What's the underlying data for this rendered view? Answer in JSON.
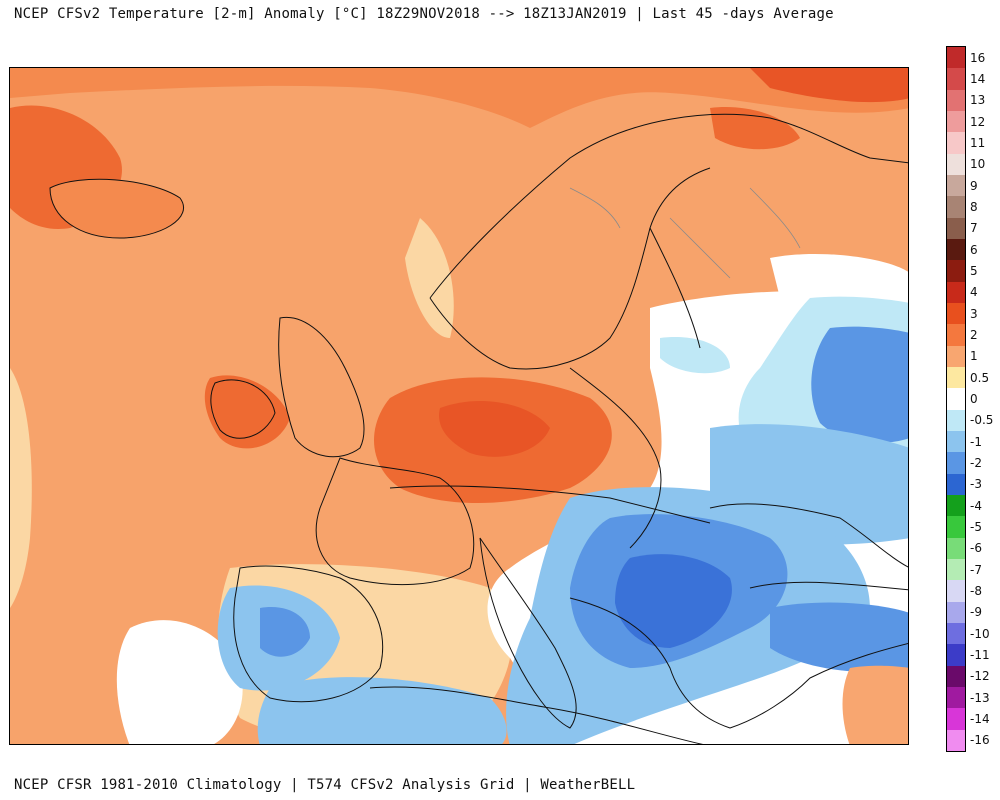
{
  "header": {
    "title": "NCEP CFSv2 Temperature [2-m] Anomaly  [°C] 18Z29NOV2018 --> 18Z13JAN2019 | Last 45 -days Average"
  },
  "footer": {
    "credit": "NCEP CFSR 1981-2010 Climatology | T574 CFSv2 Analysis Grid | WeatherBELL"
  },
  "colorbar": {
    "entries": [
      {
        "label": "16",
        "color": "#c02a2a"
      },
      {
        "label": "14",
        "color": "#d44a4a"
      },
      {
        "label": "13",
        "color": "#e27272"
      },
      {
        "label": "12",
        "color": "#ee9c9c"
      },
      {
        "label": "11",
        "color": "#f7c8c8"
      },
      {
        "label": "10",
        "color": "#eee0dc"
      },
      {
        "label": "9",
        "color": "#c8a89c"
      },
      {
        "label": "8",
        "color": "#a88474"
      },
      {
        "label": "7",
        "color": "#8a5e4c"
      },
      {
        "label": "6",
        "color": "#5a1a10"
      },
      {
        "label": "5",
        "color": "#8c1c10"
      },
      {
        "label": "4",
        "color": "#c82a1a"
      },
      {
        "label": "3",
        "color": "#e8501e"
      },
      {
        "label": "2",
        "color": "#f4783e"
      },
      {
        "label": "1",
        "color": "#f8a670"
      },
      {
        "label": "0.5",
        "color": "#fde8a0"
      },
      {
        "label": "0",
        "color": "#ffffff"
      },
      {
        "label": "-0.5",
        "color": "#bfe8f6"
      },
      {
        "label": "-1",
        "color": "#8cc4ee"
      },
      {
        "label": "-2",
        "color": "#5a96e4"
      },
      {
        "label": "-3",
        "color": "#2c66d2"
      },
      {
        "label": "-4",
        "color": "#14a01c"
      },
      {
        "label": "-5",
        "color": "#38c83c"
      },
      {
        "label": "-6",
        "color": "#78dc78"
      },
      {
        "label": "-7",
        "color": "#b4ecb4"
      },
      {
        "label": "-8",
        "color": "#d8d8f4"
      },
      {
        "label": "-9",
        "color": "#a8a8ec"
      },
      {
        "label": "-10",
        "color": "#6e6ee0"
      },
      {
        "label": "-11",
        "color": "#3c3cc8"
      },
      {
        "label": "-12",
        "color": "#6a0a6a"
      },
      {
        "label": "-13",
        "color": "#a01aa0"
      },
      {
        "label": "-14",
        "color": "#d836d8"
      },
      {
        "label": "-16",
        "color": "#f08cf0"
      }
    ]
  },
  "map": {
    "region": "Europe",
    "palette": {
      "ocean_base": "#f7a36b",
      "warm_1": "#f48a4e",
      "warm_2": "#ee6a32",
      "warm_3": "#e85526",
      "light_warm": "#fbd7a4",
      "pale": "#fdf0c0",
      "neutral": "#ffffff",
      "cool_1": "#bfe8f6",
      "cool_2": "#8cc4ee",
      "cool_3": "#5a96e4",
      "cool_4": "#3a72d8",
      "coast": "#111111",
      "lake": "#8a8a8a"
    }
  }
}
